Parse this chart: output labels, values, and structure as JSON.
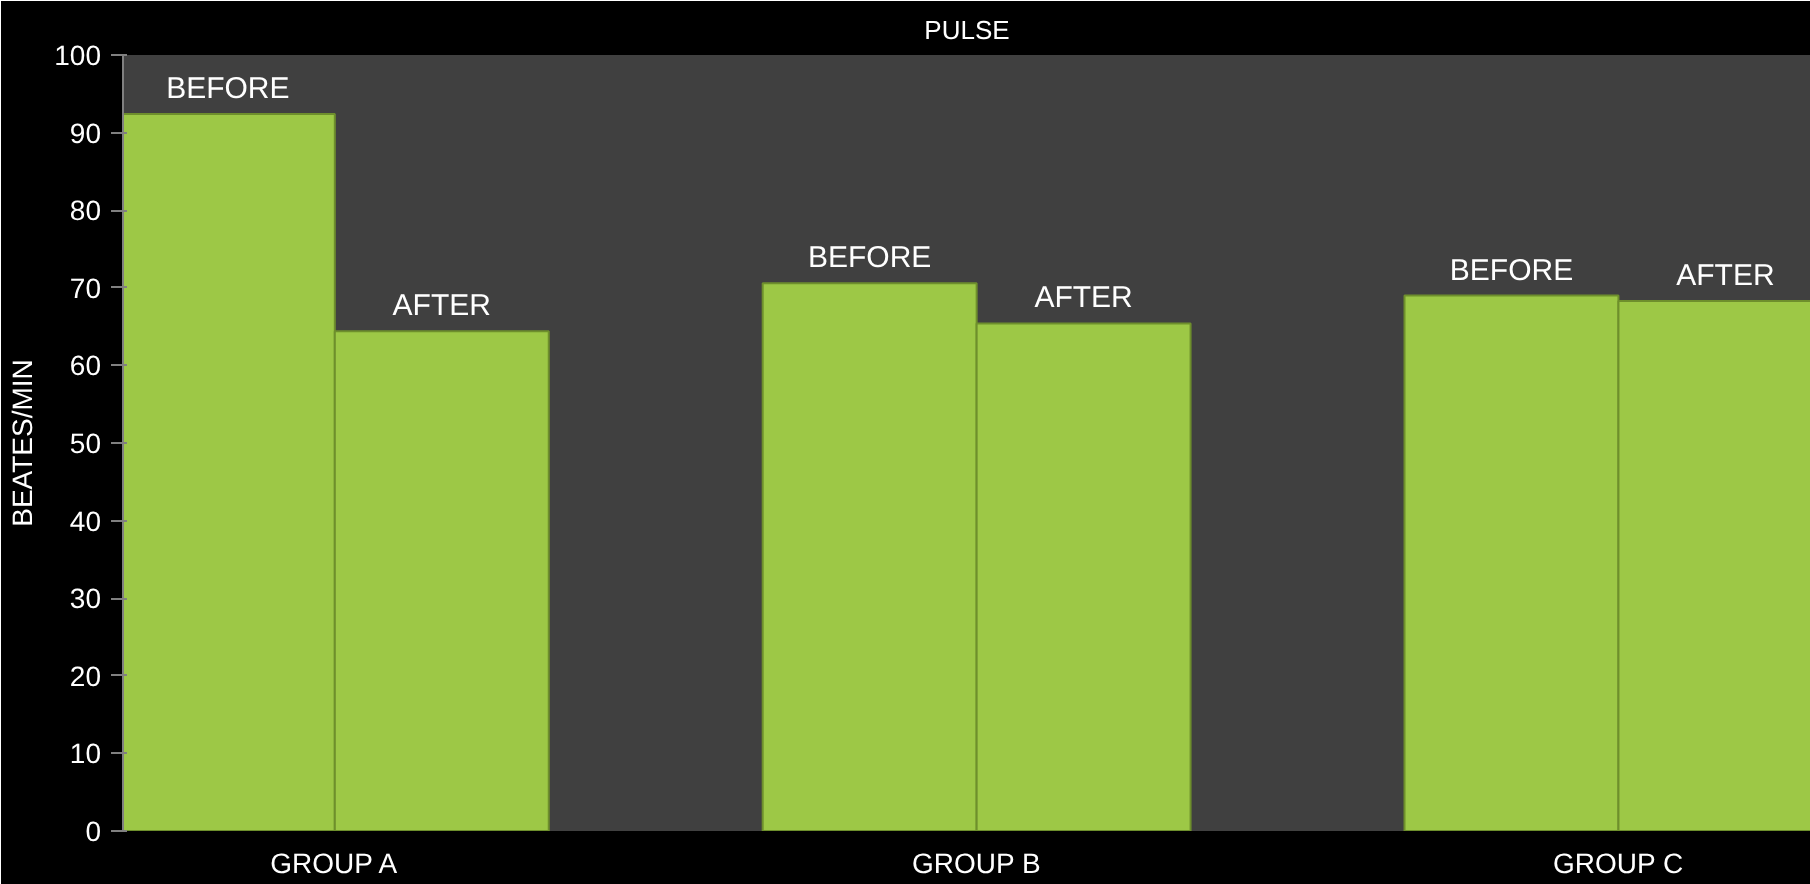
{
  "chart_data": {
    "type": "bar",
    "title": "PULSE",
    "ylabel": "BEATES/MIN",
    "categories": [
      "GROUP A",
      "GROUP B",
      "GROUP C"
    ],
    "series": [
      {
        "name": "BEFORE",
        "color": "#9dc846",
        "values": [
          92.4,
          70.6,
          69.0
        ]
      },
      {
        "name": "AFTER",
        "color": "#9dc846",
        "values": [
          64.4,
          65.4,
          68.3
        ]
      }
    ],
    "ylim": [
      0,
      100
    ],
    "yticks": [
      0,
      10,
      20,
      30,
      40,
      50,
      60,
      70,
      80,
      90,
      100
    ],
    "grid": false
  }
}
